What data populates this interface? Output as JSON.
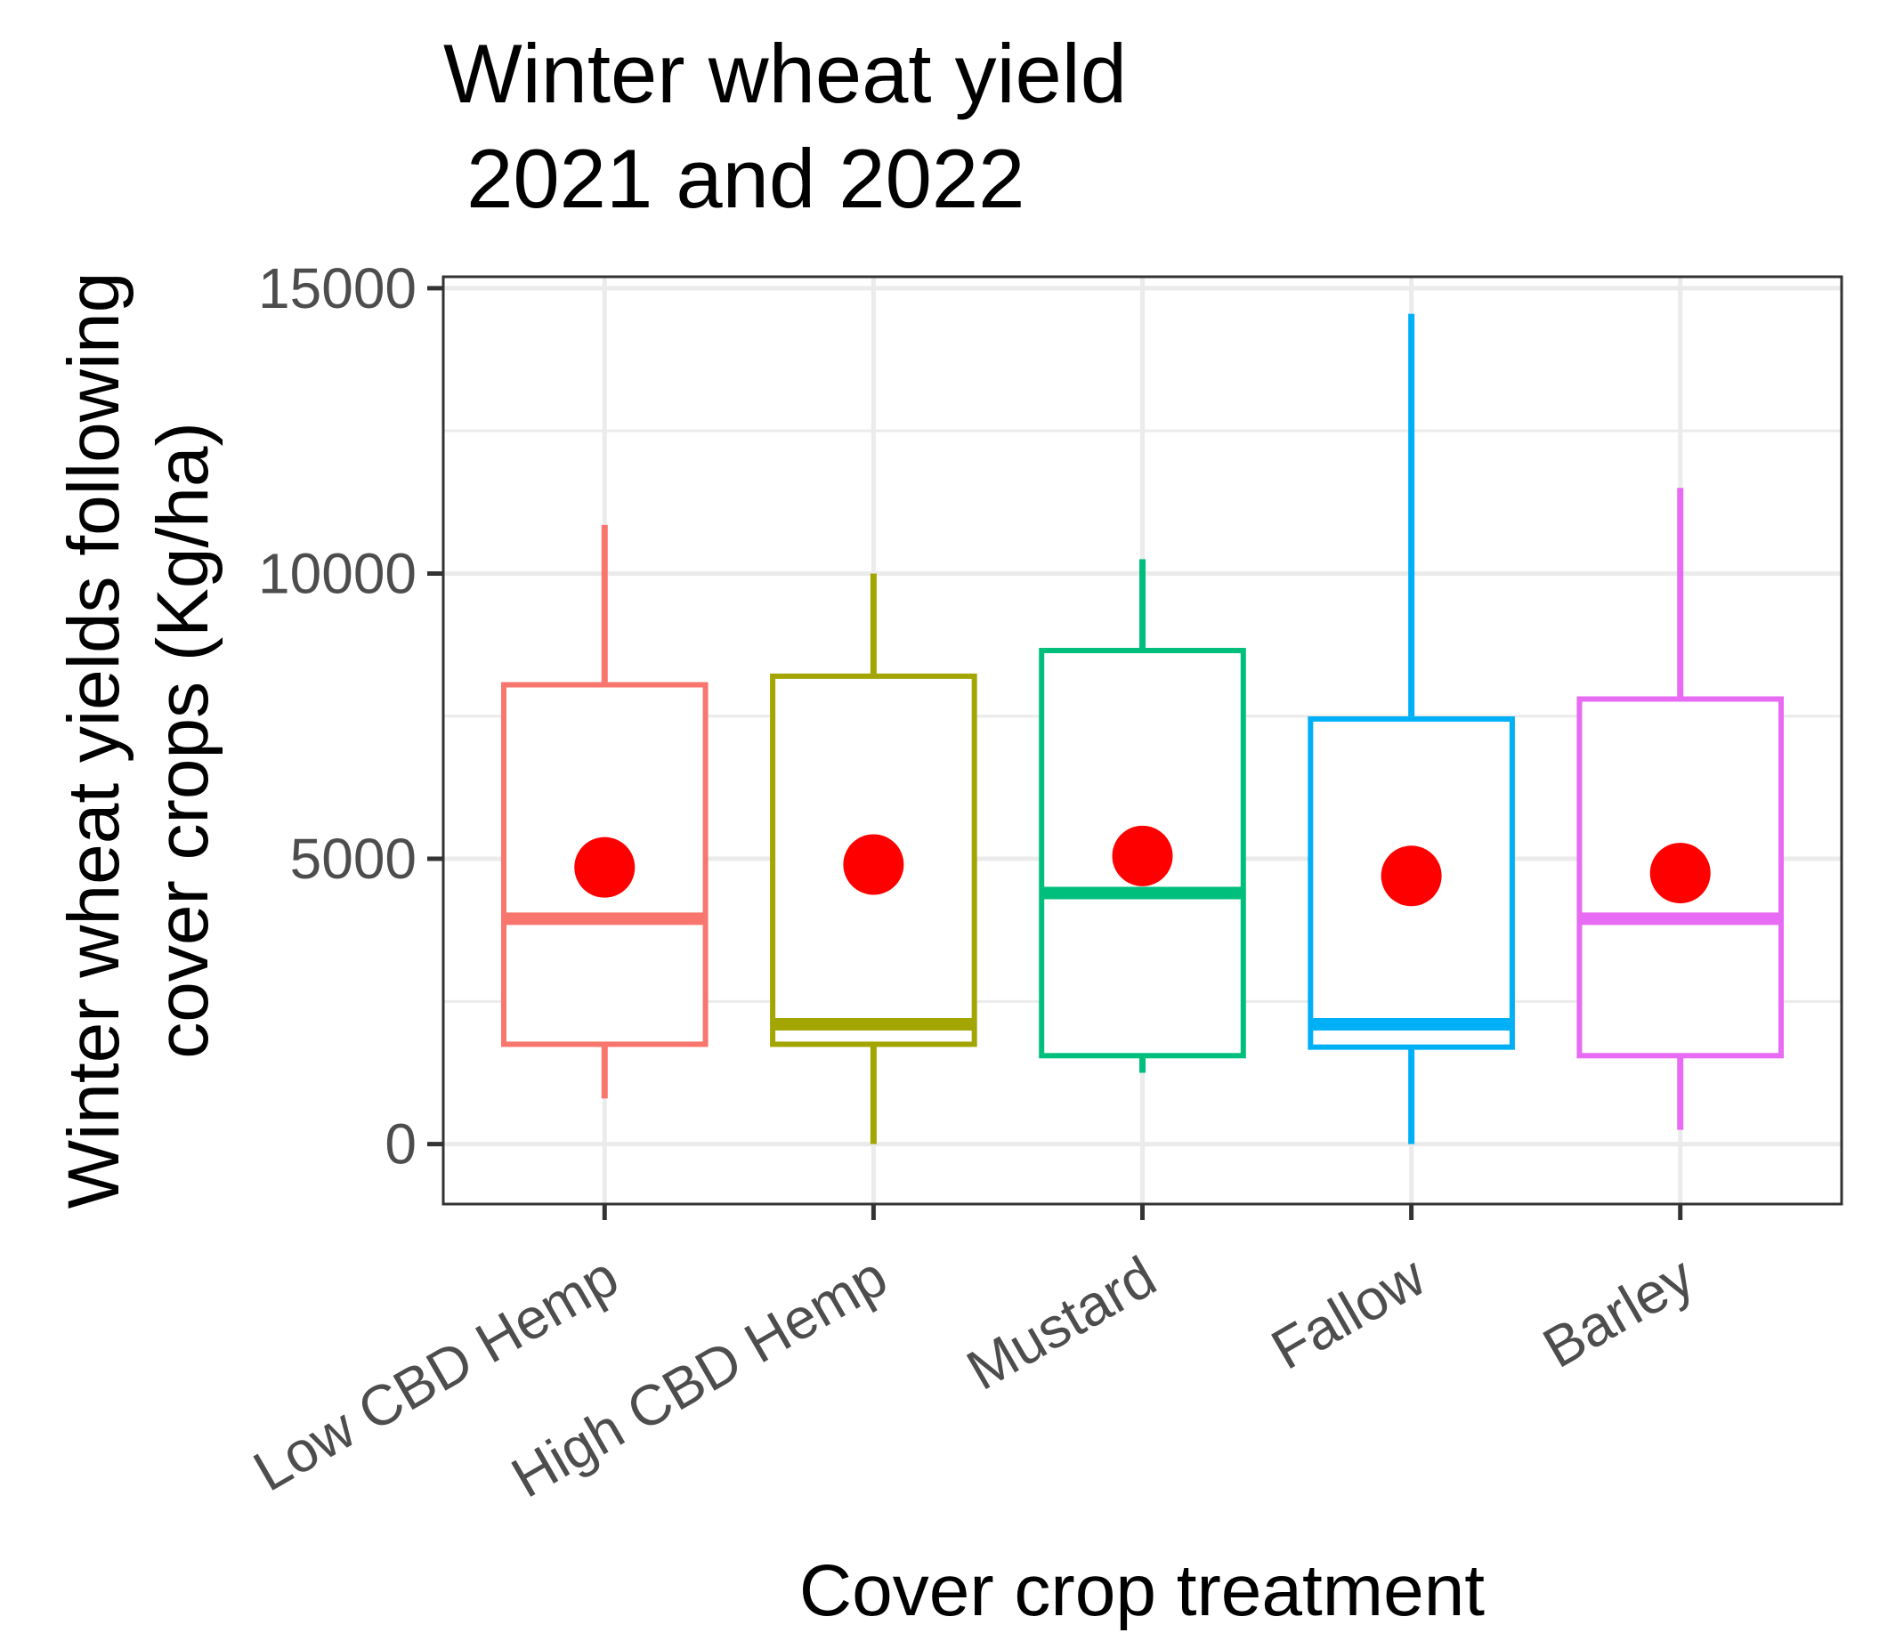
{
  "chart_data": {
    "type": "boxplot",
    "title": [
      "Winter wheat yield",
      " 2021 and 2022"
    ],
    "xlabel": "Cover crop treatment",
    "ylabel": [
      "Winter wheat yields following",
      "cover crops (Kg/ha)"
    ],
    "ylim": [
      -1050,
      15200
    ],
    "yticks": [
      0,
      5000,
      10000,
      15000
    ],
    "ytick_labels": [
      "0",
      "5000",
      "10000",
      "15000"
    ],
    "categories": [
      "Low CBD Hemp",
      "High CBD Hemp",
      "Mustard",
      "Fallow",
      "Barley"
    ],
    "grid": true,
    "legend": "none",
    "series": [
      {
        "color": "#F8766D",
        "min": 800,
        "q1": 1750,
        "median": 3950,
        "q3": 8050,
        "max": 10850,
        "mean": 4850
      },
      {
        "color": "#A3A500",
        "min": 0,
        "q1": 1750,
        "median": 2100,
        "q3": 8200,
        "max": 10000,
        "mean": 4900
      },
      {
        "color": "#00BF7D",
        "min": 1250,
        "q1": 1550,
        "median": 4400,
        "q3": 8650,
        "max": 10250,
        "mean": 5050
      },
      {
        "color": "#00B0F6",
        "min": 0,
        "q1": 1700,
        "median": 2100,
        "q3": 7450,
        "max": 14550,
        "mean": 4700
      },
      {
        "color": "#E76BF3",
        "min": 250,
        "q1": 1550,
        "median": 3950,
        "q3": 7800,
        "max": 11500,
        "mean": 4750
      }
    ],
    "mean_marker_color": "#FF0000"
  }
}
